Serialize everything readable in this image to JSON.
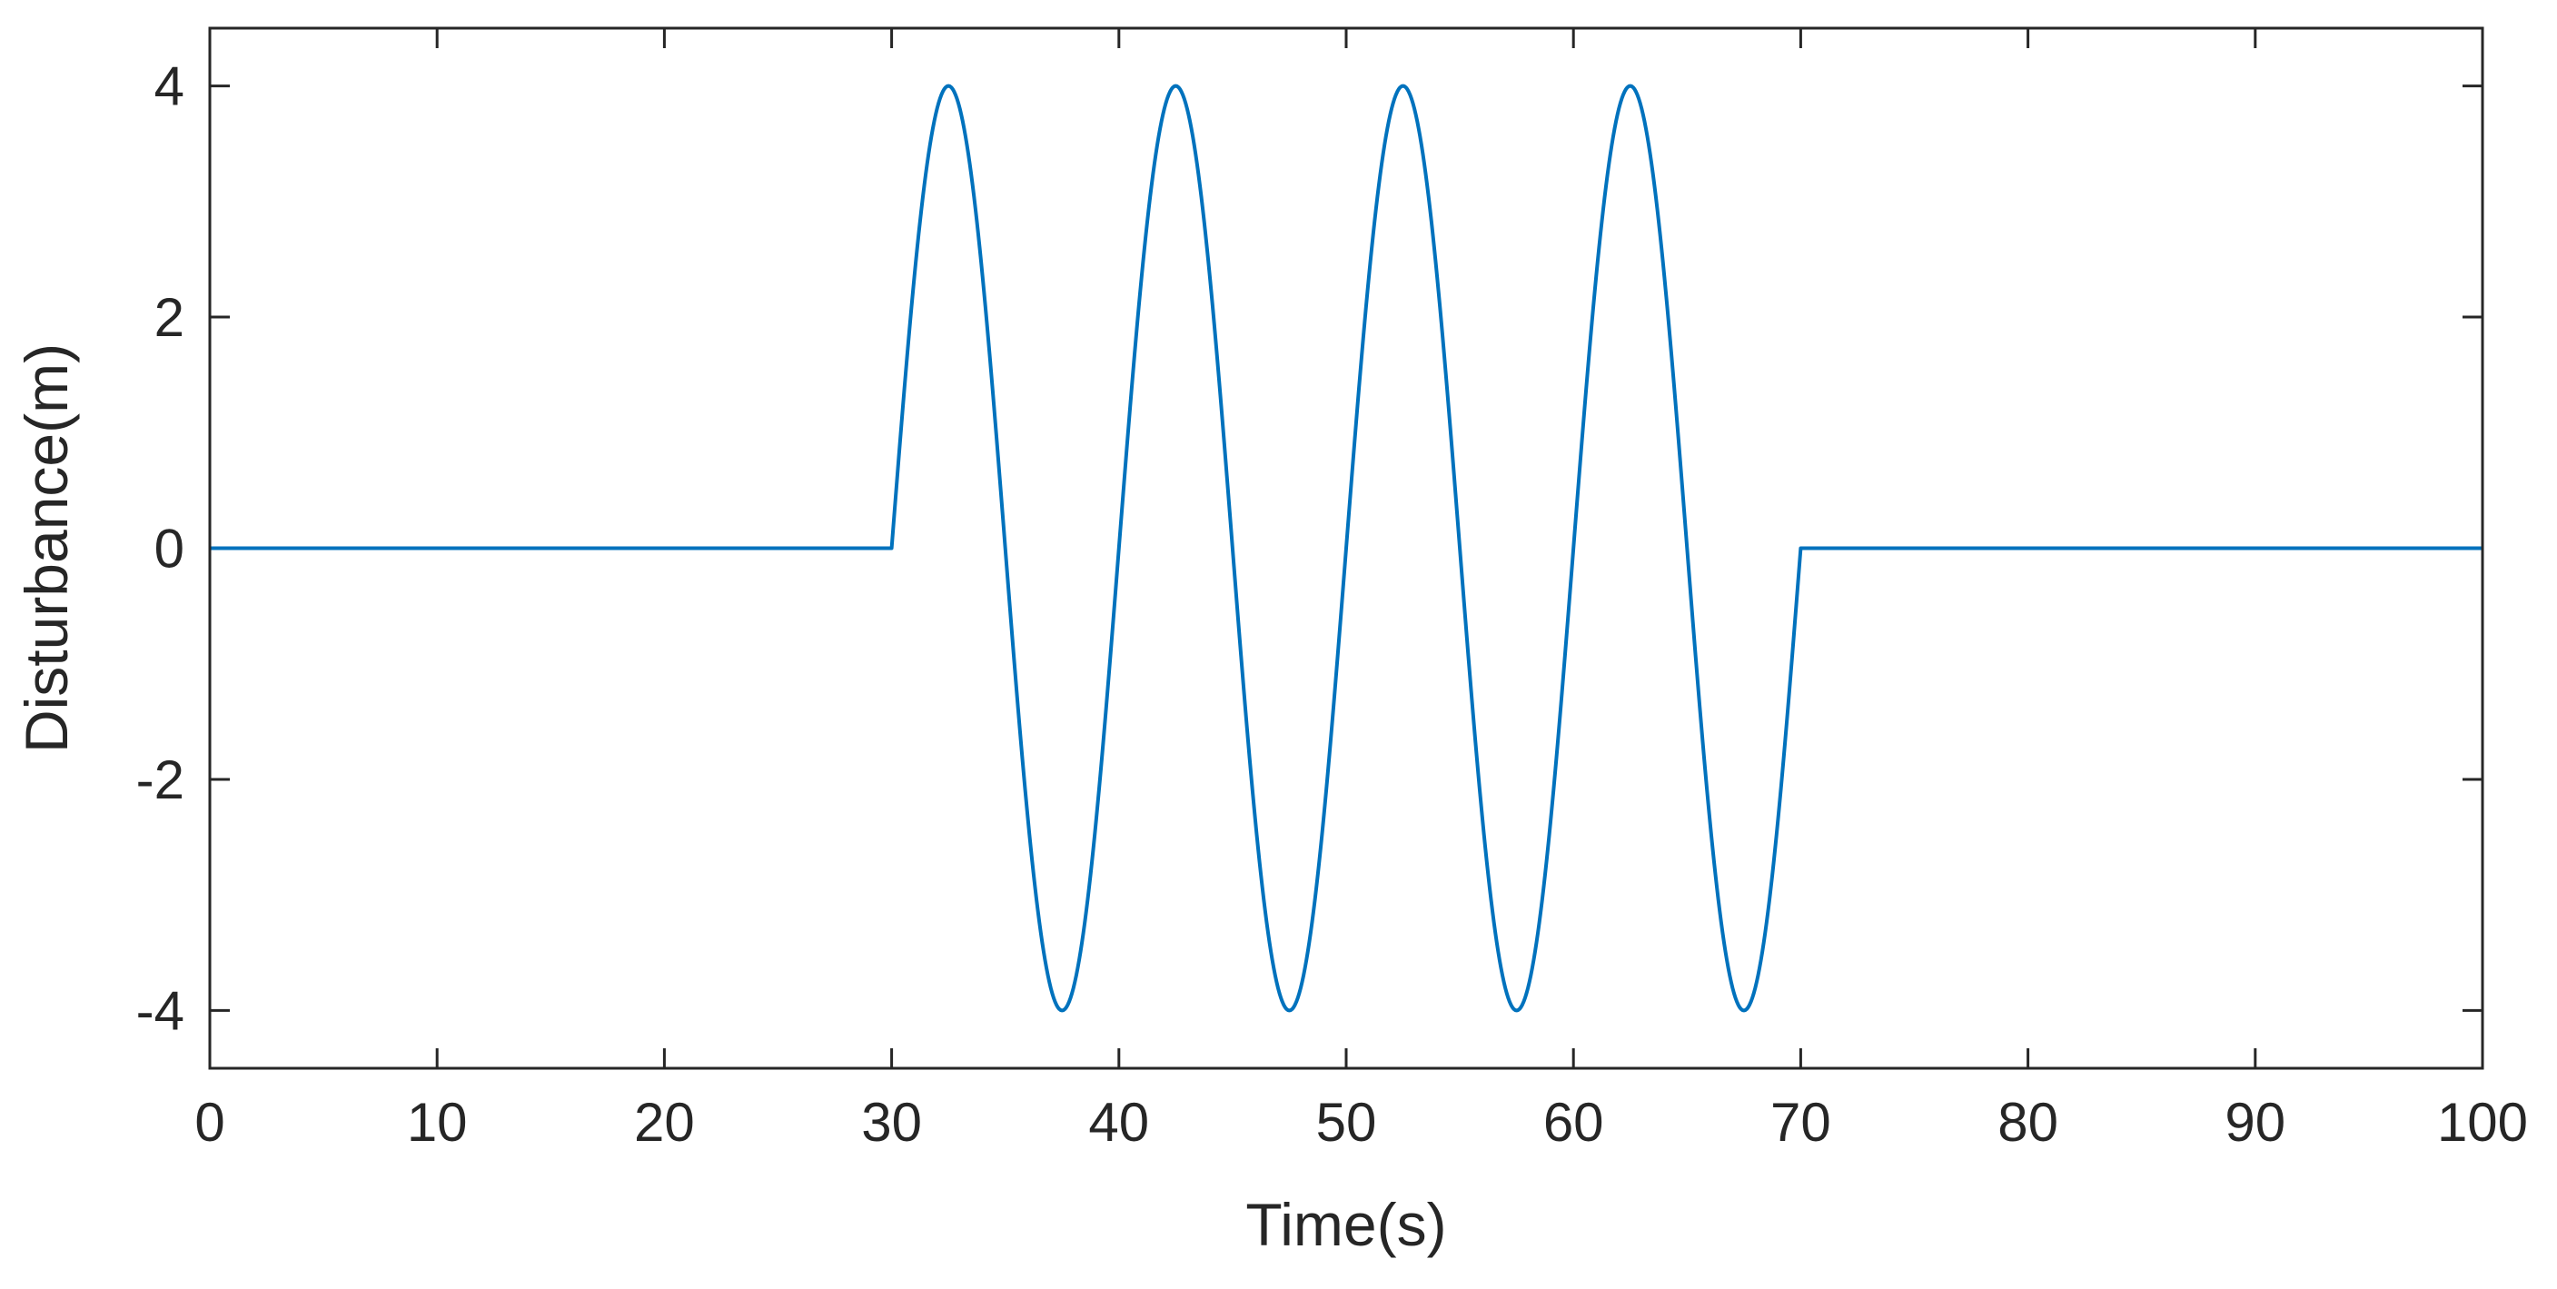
{
  "chart_data": {
    "type": "line",
    "title": "",
    "xlabel": "Time(s)",
    "ylabel": "Disturbance(m)",
    "xlim": [
      0,
      100
    ],
    "ylim": [
      -4.5,
      4.5
    ],
    "x_ticks": [
      0,
      10,
      20,
      30,
      40,
      50,
      60,
      70,
      80,
      90,
      100
    ],
    "x_tick_labels": [
      "0",
      "10",
      "20",
      "30",
      "40",
      "50",
      "60",
      "70",
      "80",
      "90",
      "100"
    ],
    "y_ticks": [
      -4,
      -2,
      0,
      2,
      4
    ],
    "y_tick_labels": [
      "-4",
      "-2",
      "0",
      "2",
      "4"
    ],
    "grid": false,
    "legend": "none",
    "series": [
      {
        "color": "#0072BD",
        "description": "zero from 0 to 30 s; 4 sine cycles of amplitude 4 m and period 10 s between 30 and 70 s; zero from 70 to 100 s",
        "x": [
          0,
          30,
          30,
          32.5,
          35,
          37.5,
          40,
          42.5,
          45,
          47.5,
          50,
          52.5,
          55,
          57.5,
          60,
          62.5,
          65,
          67.5,
          70,
          70,
          100
        ],
        "y": [
          0,
          0,
          0,
          4,
          0,
          -4,
          0,
          4,
          0,
          -4,
          0,
          4,
          0,
          -4,
          0,
          4,
          0,
          -4,
          0,
          0,
          0
        ]
      }
    ]
  }
}
